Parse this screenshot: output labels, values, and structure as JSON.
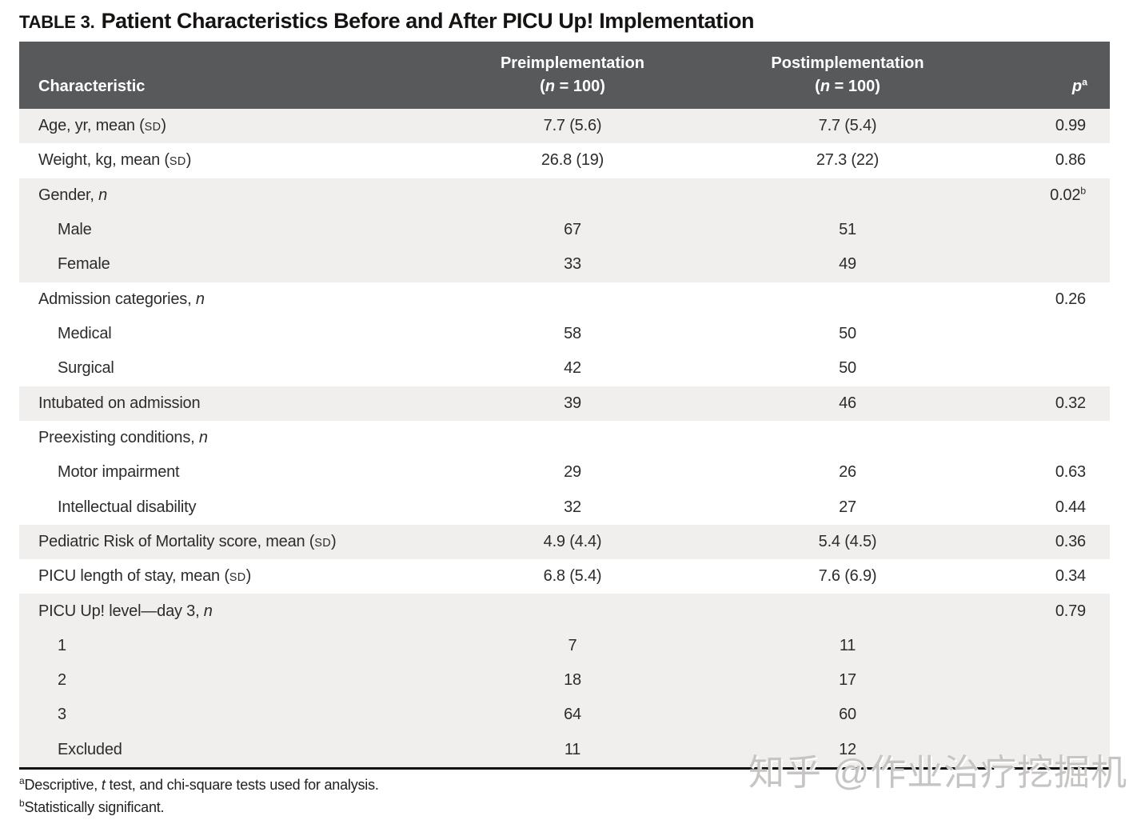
{
  "title": {
    "tag": "TABLE 3.",
    "text": "Patient Characteristics Before and After PICU Up! Implementation"
  },
  "table": {
    "header": {
      "characteristic": "Characteristic",
      "pre_line1": "Preimplementation",
      "pre_line2": "(n = 100)",
      "post_line1": "Postimplementation",
      "post_line2": "(n = 100)",
      "p": "p",
      "p_sup": "a"
    },
    "rows": [
      {
        "label": "Age, yr, mean (SD)",
        "indent": false,
        "shaded": true,
        "pre": "7.7 (5.6)",
        "post": "7.7 (5.4)",
        "p": "0.99",
        "p_sup": ""
      },
      {
        "label": "Weight, kg, mean (SD)",
        "indent": false,
        "shaded": false,
        "pre": "26.8 (19)",
        "post": "27.3 (22)",
        "p": "0.86",
        "p_sup": ""
      },
      {
        "label": "Gender, n",
        "indent": false,
        "shaded": true,
        "pre": "",
        "post": "",
        "p": "0.02",
        "p_sup": "b"
      },
      {
        "label": "Male",
        "indent": true,
        "shaded": true,
        "pre": "67",
        "post": "51",
        "p": "",
        "p_sup": ""
      },
      {
        "label": "Female",
        "indent": true,
        "shaded": true,
        "pre": "33",
        "post": "49",
        "p": "",
        "p_sup": ""
      },
      {
        "label": "Admission categories, n",
        "indent": false,
        "shaded": false,
        "pre": "",
        "post": "",
        "p": "0.26",
        "p_sup": ""
      },
      {
        "label": "Medical",
        "indent": true,
        "shaded": false,
        "pre": "58",
        "post": "50",
        "p": "",
        "p_sup": ""
      },
      {
        "label": "Surgical",
        "indent": true,
        "shaded": false,
        "pre": "42",
        "post": "50",
        "p": "",
        "p_sup": ""
      },
      {
        "label": "Intubated on admission",
        "indent": false,
        "shaded": true,
        "pre": "39",
        "post": "46",
        "p": "0.32",
        "p_sup": ""
      },
      {
        "label": "Preexisting conditions, n",
        "indent": false,
        "shaded": false,
        "pre": "",
        "post": "",
        "p": "",
        "p_sup": ""
      },
      {
        "label": "Motor impairment",
        "indent": true,
        "shaded": false,
        "pre": "29",
        "post": "26",
        "p": "0.63",
        "p_sup": ""
      },
      {
        "label": "Intellectual disability",
        "indent": true,
        "shaded": false,
        "pre": "32",
        "post": "27",
        "p": "0.44",
        "p_sup": ""
      },
      {
        "label": "Pediatric Risk of Mortality score, mean (SD)",
        "indent": false,
        "shaded": true,
        "pre": "4.9 (4.4)",
        "post": "5.4 (4.5)",
        "p": "0.36",
        "p_sup": ""
      },
      {
        "label": "PICU length of stay, mean (SD)",
        "indent": false,
        "shaded": false,
        "pre": "6.8 (5.4)",
        "post": "7.6 (6.9)",
        "p": "0.34",
        "p_sup": ""
      },
      {
        "label": "PICU Up! level—day 3, n",
        "indent": false,
        "shaded": true,
        "pre": "",
        "post": "",
        "p": "0.79",
        "p_sup": ""
      },
      {
        "label": "1",
        "indent": true,
        "shaded": true,
        "pre": "7",
        "post": "11",
        "p": "",
        "p_sup": ""
      },
      {
        "label": "2",
        "indent": true,
        "shaded": true,
        "pre": "18",
        "post": "17",
        "p": "",
        "p_sup": ""
      },
      {
        "label": "3",
        "indent": true,
        "shaded": true,
        "pre": "64",
        "post": "60",
        "p": "",
        "p_sup": ""
      },
      {
        "label": "Excluded",
        "indent": true,
        "shaded": true,
        "pre": "11",
        "post": "12",
        "p": "",
        "p_sup": ""
      }
    ]
  },
  "footnotes": [
    {
      "sup": "a",
      "parts": [
        "Descriptive, ",
        "t",
        " test, and chi-square tests used for analysis."
      ]
    },
    {
      "sup": "b",
      "parts": [
        "Statistically significant.",
        "",
        ""
      ]
    }
  ],
  "watermark": "知乎 @作业治疗挖掘机",
  "colors": {
    "header_bg": "#58595b",
    "header_text": "#ffffff",
    "row_shade": "#f0efee",
    "body_text": "#2e2c2b",
    "bottom_border": "#131211",
    "watermark": "#c7c5c3"
  }
}
